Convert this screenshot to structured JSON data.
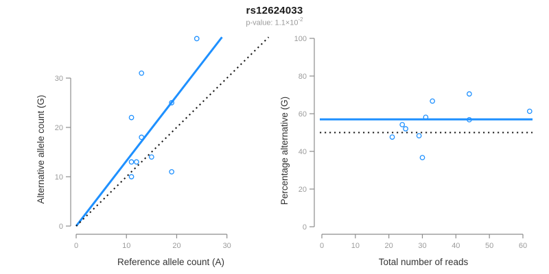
{
  "header": {
    "title": "rs12624033",
    "pvalue_prefix": "p-value: 1.1×10",
    "pvalue_exponent": "-2"
  },
  "colors": {
    "accent_blue": "#1E90FF",
    "axis_gray": "#8c8c8c",
    "tick_label_gray": "#9b9b9b",
    "axis_title_dark": "#333333",
    "dashed_black": "#1a1a1a"
  },
  "chart_data": [
    {
      "type": "scatter",
      "name": "allele-count-scatter",
      "xlabel": "Reference allele count (A)",
      "ylabel": "Alternative allele count (G)",
      "xlim": [
        0,
        30
      ],
      "ylim": [
        0,
        38.3
      ],
      "xticks": [
        0,
        10,
        20,
        30
      ],
      "yticks": [
        0,
        10,
        20,
        30
      ],
      "grid": false,
      "points": [
        [
          24,
          38
        ],
        [
          13,
          31
        ],
        [
          19,
          25
        ],
        [
          11,
          22
        ],
        [
          13,
          18
        ],
        [
          15,
          14
        ],
        [
          12,
          13
        ],
        [
          11,
          13
        ],
        [
          19,
          11
        ],
        [
          11,
          10
        ]
      ],
      "lines": [
        {
          "name": "regression-line",
          "style": "solid-blue",
          "slope": 1.32,
          "intercept": 0
        },
        {
          "name": "identity-line",
          "style": "dotted-black",
          "slope": 1.0,
          "intercept": 0
        }
      ]
    },
    {
      "type": "scatter",
      "name": "percentage-vs-reads-scatter",
      "xlabel": "Total number of reads",
      "ylabel": "Percentage alternative (G)",
      "xlim": [
        0,
        62
      ],
      "ylim": [
        0,
        100
      ],
      "xticks": [
        0,
        10,
        20,
        30,
        40,
        50,
        60
      ],
      "yticks": [
        0,
        20,
        40,
        60,
        80,
        100
      ],
      "grid": false,
      "points": [
        [
          62,
          61.3
        ],
        [
          44,
          70.5
        ],
        [
          44,
          56.8
        ],
        [
          33,
          66.7
        ],
        [
          31,
          58.1
        ],
        [
          29,
          48.3
        ],
        [
          25,
          52.0
        ],
        [
          24,
          54.2
        ],
        [
          30,
          36.7
        ],
        [
          21,
          47.6
        ]
      ],
      "lines": [
        {
          "name": "mean-percentage-line",
          "style": "solid-blue",
          "y": 57
        },
        {
          "name": "null-50pct-line",
          "style": "dotted-black",
          "y": 50
        }
      ]
    }
  ]
}
